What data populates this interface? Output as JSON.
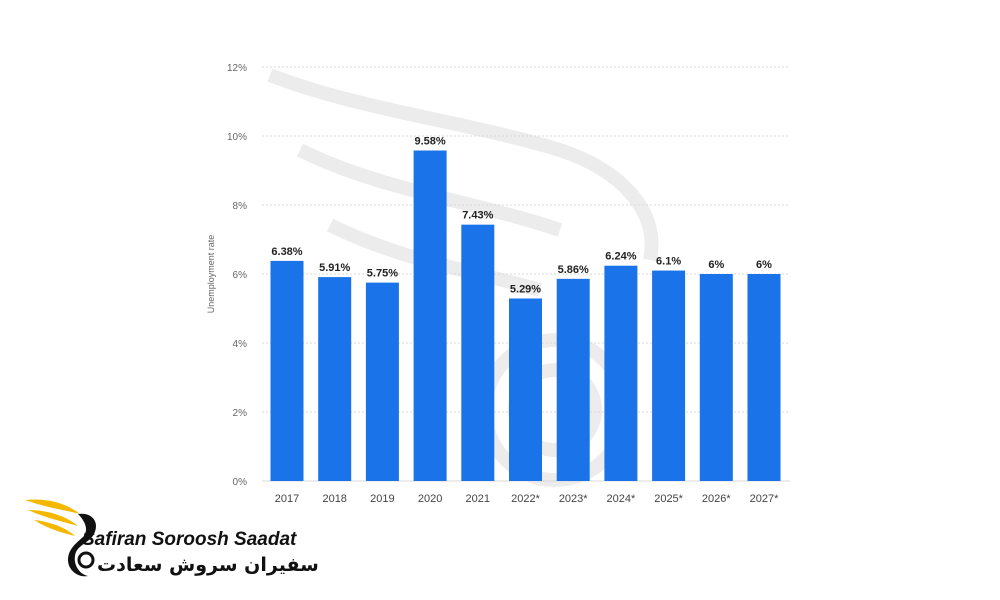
{
  "chart_data": {
    "type": "bar",
    "title": "",
    "xlabel": "",
    "ylabel": "Unemployment rate",
    "categories": [
      "2017",
      "2018",
      "2019",
      "2020",
      "2021",
      "2022*",
      "2023*",
      "2024*",
      "2025*",
      "2026*",
      "2027*"
    ],
    "values": [
      6.38,
      5.91,
      5.75,
      9.58,
      7.43,
      5.29,
      5.86,
      6.24,
      6.1,
      6,
      6
    ],
    "value_labels": [
      "6.38%",
      "5.91%",
      "5.75%",
      "9.58%",
      "7.43%",
      "5.29%",
      "5.86%",
      "6.24%",
      "6.1%",
      "6%",
      "6%"
    ],
    "ylim": [
      0,
      12
    ],
    "yticks": [
      0,
      2,
      4,
      6,
      8,
      10,
      12
    ],
    "ytick_labels": [
      "0%",
      "2%",
      "4%",
      "6%",
      "8%",
      "10%",
      "12%"
    ],
    "grid": true,
    "bar_color": "#1a73e8",
    "grid_color": "#d9d9d9"
  },
  "watermark": {
    "name_en": "Safiran Soroosh Saadat",
    "name_fa": "سفیران سروش سعادت",
    "accent_color": "#f5b800",
    "text_color": "#111111"
  }
}
